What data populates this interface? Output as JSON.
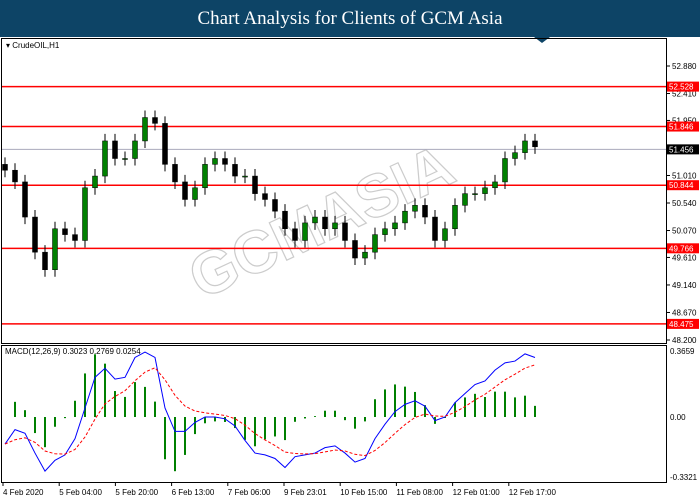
{
  "header": {
    "title": "Chart Analysis for Clients of GCM Asia"
  },
  "symbol": "CrudeOIL,H1",
  "macd_label": "MACD(12,26,9) 0.3023 0.2769 0.0254",
  "watermark": "GCMASIA GLOBAL CAPITAL MARKETS",
  "colors": {
    "banner": "#0d4466",
    "level": "#ff0000",
    "bull": "#008000",
    "macd": "#0000ff",
    "signal": "#ff0000",
    "hist": "#008000"
  },
  "chart_data": [
    {
      "type": "candlestick",
      "ylim": [
        48.2,
        52.88
      ],
      "yticks": [
        "52.880",
        "52.410",
        "51.950",
        "51.010",
        "50.540",
        "50.070",
        "49.610",
        "49.140",
        "48.670",
        "48.200"
      ],
      "levels": [
        {
          "label": "52.528",
          "value": 52.528
        },
        {
          "label": "51.846",
          "value": 51.846
        },
        {
          "label": "50.844",
          "value": 50.844
        },
        {
          "label": "49.766",
          "value": 49.766
        },
        {
          "label": "48.475",
          "value": 48.475
        }
      ],
      "current": {
        "label": "51.456",
        "value": 51.456
      },
      "closes": [
        51.1,
        50.9,
        50.3,
        49.7,
        49.4,
        50.1,
        50.0,
        49.9,
        50.8,
        51.0,
        51.6,
        51.3,
        51.3,
        51.6,
        52.0,
        51.9,
        51.2,
        50.9,
        50.6,
        50.8,
        51.2,
        51.3,
        51.2,
        51.0,
        51.0,
        50.7,
        50.6,
        50.4,
        50.1,
        49.9,
        50.2,
        50.3,
        50.1,
        50.2,
        49.9,
        49.6,
        49.7,
        50.0,
        50.1,
        50.2,
        50.4,
        50.5,
        50.3,
        49.9,
        50.1,
        50.5,
        50.7,
        50.7,
        50.8,
        50.9,
        51.3,
        51.4,
        51.6,
        51.5
      ],
      "xticks": [
        "4 Feb 2020",
        "5 Feb 04:00",
        "5 Feb 20:00",
        "6 Feb 13:00",
        "7 Feb 06:00",
        "9 Feb 23:01",
        "10 Feb 15:00",
        "11 Feb 08:00",
        "12 Feb 01:00",
        "12 Feb 17:00"
      ]
    },
    {
      "type": "line",
      "ylim": [
        -0.3321,
        0.3659
      ],
      "yticks": [
        "0.3659",
        "0.00",
        "-0.3321"
      ],
      "macd": [
        -0.15,
        -0.07,
        -0.09,
        -0.2,
        -0.3,
        -0.24,
        -0.21,
        -0.12,
        0.05,
        0.22,
        0.27,
        0.21,
        0.22,
        0.33,
        0.36,
        0.33,
        0.05,
        -0.08,
        -0.08,
        -0.03,
        0.0,
        0.0,
        -0.01,
        -0.05,
        -0.13,
        -0.2,
        -0.21,
        -0.23,
        -0.28,
        -0.22,
        -0.21,
        -0.2,
        -0.17,
        -0.16,
        -0.2,
        -0.25,
        -0.23,
        -0.12,
        -0.04,
        0.03,
        0.07,
        0.09,
        0.06,
        -0.02,
        0.0,
        0.08,
        0.13,
        0.18,
        0.2,
        0.26,
        0.3,
        0.31,
        0.35,
        0.33
      ]
    }
  ]
}
